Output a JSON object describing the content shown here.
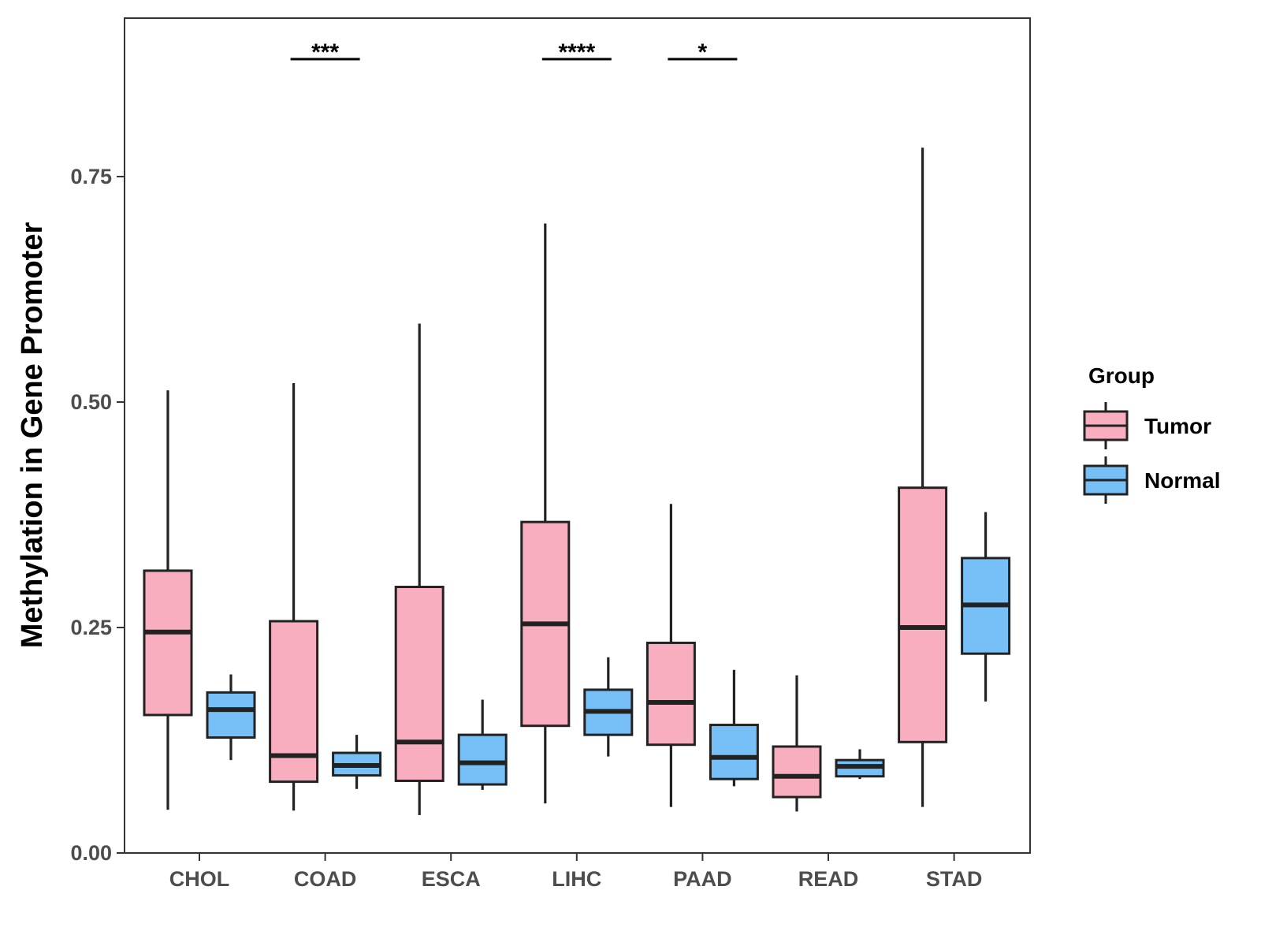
{
  "chart_data": {
    "type": "boxplot",
    "title": "",
    "xlabel": "",
    "ylabel": "Methylation in Gene Promoter",
    "ylim": [
      0,
      0.93
    ],
    "yticks": [
      {
        "value": 0.0,
        "label": "0.00"
      },
      {
        "value": 0.25,
        "label": "0.25"
      },
      {
        "value": 0.5,
        "label": "0.50"
      },
      {
        "value": 0.75,
        "label": "0.75"
      }
    ],
    "grid": false,
    "categories": [
      "CHOL",
      "COAD",
      "ESCA",
      "LIHC",
      "PAAD",
      "READ",
      "STAD"
    ],
    "legend": {
      "title": "Group",
      "position": "right",
      "entries": [
        {
          "name": "Tumor",
          "color": "#f9aec0"
        },
        {
          "name": "Normal",
          "color": "#76bff7"
        }
      ]
    },
    "series": [
      {
        "name": "Tumor",
        "color": "#f9aec0",
        "boxes": [
          {
            "min": 0.048,
            "q1": 0.153,
            "median": 0.245,
            "q3": 0.313,
            "max": 0.513
          },
          {
            "min": 0.047,
            "q1": 0.079,
            "median": 0.108,
            "q3": 0.257,
            "max": 0.521
          },
          {
            "min": 0.042,
            "q1": 0.08,
            "median": 0.123,
            "q3": 0.295,
            "max": 0.587
          },
          {
            "min": 0.055,
            "q1": 0.141,
            "median": 0.254,
            "q3": 0.367,
            "max": 0.698
          },
          {
            "min": 0.051,
            "q1": 0.12,
            "median": 0.167,
            "q3": 0.233,
            "max": 0.387
          },
          {
            "min": 0.046,
            "q1": 0.062,
            "median": 0.085,
            "q3": 0.118,
            "max": 0.197
          },
          {
            "min": 0.051,
            "q1": 0.123,
            "median": 0.25,
            "q3": 0.405,
            "max": 0.782
          }
        ]
      },
      {
        "name": "Normal",
        "color": "#76bff7",
        "boxes": [
          {
            "min": 0.103,
            "q1": 0.128,
            "median": 0.159,
            "q3": 0.178,
            "max": 0.198
          },
          {
            "min": 0.071,
            "q1": 0.086,
            "median": 0.097,
            "q3": 0.111,
            "max": 0.131
          },
          {
            "min": 0.07,
            "q1": 0.076,
            "median": 0.1,
            "q3": 0.131,
            "max": 0.17
          },
          {
            "min": 0.107,
            "q1": 0.131,
            "median": 0.157,
            "q3": 0.181,
            "max": 0.217
          },
          {
            "min": 0.074,
            "q1": 0.082,
            "median": 0.106,
            "q3": 0.142,
            "max": 0.203
          },
          {
            "min": 0.082,
            "q1": 0.085,
            "median": 0.096,
            "q3": 0.103,
            "max": 0.115
          },
          {
            "min": 0.168,
            "q1": 0.221,
            "median": 0.275,
            "q3": 0.327,
            "max": 0.378
          }
        ]
      }
    ],
    "annotations": [
      {
        "category": "COAD",
        "label": "***"
      },
      {
        "category": "LIHC",
        "label": "****"
      },
      {
        "category": "PAAD",
        "label": "*"
      }
    ]
  }
}
